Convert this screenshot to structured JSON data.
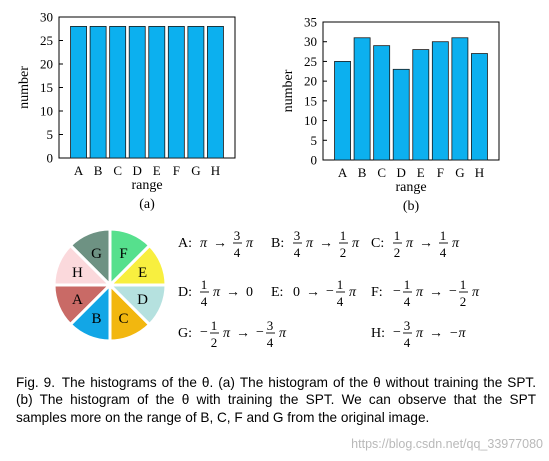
{
  "chart_data": [
    {
      "type": "bar",
      "panel_label": "(a)",
      "categories": [
        "A",
        "B",
        "C",
        "D",
        "E",
        "F",
        "G",
        "H"
      ],
      "values": [
        28,
        28,
        28,
        28,
        28,
        28,
        28,
        28
      ],
      "xlabel": "range",
      "ylabel": "number",
      "ylim": [
        0,
        30
      ],
      "yticks": [
        "0",
        "5",
        "10",
        "15",
        "20",
        "25",
        "30"
      ],
      "bar_color": "#0cb0ef",
      "grid": false
    },
    {
      "type": "bar",
      "panel_label": "(b)",
      "categories": [
        "A",
        "B",
        "C",
        "D",
        "E",
        "F",
        "G",
        "H"
      ],
      "values": [
        25,
        31,
        29,
        23,
        28,
        30,
        31,
        27
      ],
      "xlabel": "range",
      "ylabel": "number",
      "ylim": [
        0,
        35
      ],
      "yticks": [
        "0",
        "5",
        "10",
        "15",
        "20",
        "25",
        "30",
        "35"
      ],
      "bar_color": "#0cb0ef",
      "grid": false
    }
  ],
  "pie": {
    "segments": [
      {
        "label": "A",
        "color": "#c96a66"
      },
      {
        "label": "B",
        "color": "#12a6e6"
      },
      {
        "label": "C",
        "color": "#f2b70f"
      },
      {
        "label": "D",
        "color": "#b5e1df"
      },
      {
        "label": "E",
        "color": "#f8ef3f"
      },
      {
        "label": "F",
        "color": "#56e08d"
      },
      {
        "label": "G",
        "color": "#6e9283"
      },
      {
        "label": "H",
        "color": "#fbd9dc"
      }
    ]
  },
  "ranges": [
    {
      "label": "A:",
      "expr": "π → 3/4 π"
    },
    {
      "label": "B:",
      "expr": "3/4 π → 1/2 π"
    },
    {
      "label": "C:",
      "expr": "1/2 π → 1/4 π"
    },
    {
      "label": "D:",
      "expr": "1/4 π → 0"
    },
    {
      "label": "E:",
      "expr": "0 → −1/4 π"
    },
    {
      "label": "F:",
      "expr": "−1/4 π → −1/2 π"
    },
    {
      "label": "G:",
      "expr": "−1/2 π → −3/4 π"
    },
    {
      "label": "H:",
      "expr": "−3/4 π → −π"
    }
  ],
  "caption": {
    "fig_label": "Fig. 9.",
    "text": "The histograms of the θ. (a) The histogram of the θ without training the SPT. (b) The histogram of the θ with training the SPT. We can observe that the SPT samples more on the range of B, C, F and G from the original image."
  },
  "watermark": "https://blog.csdn.net/qq_33977080"
}
